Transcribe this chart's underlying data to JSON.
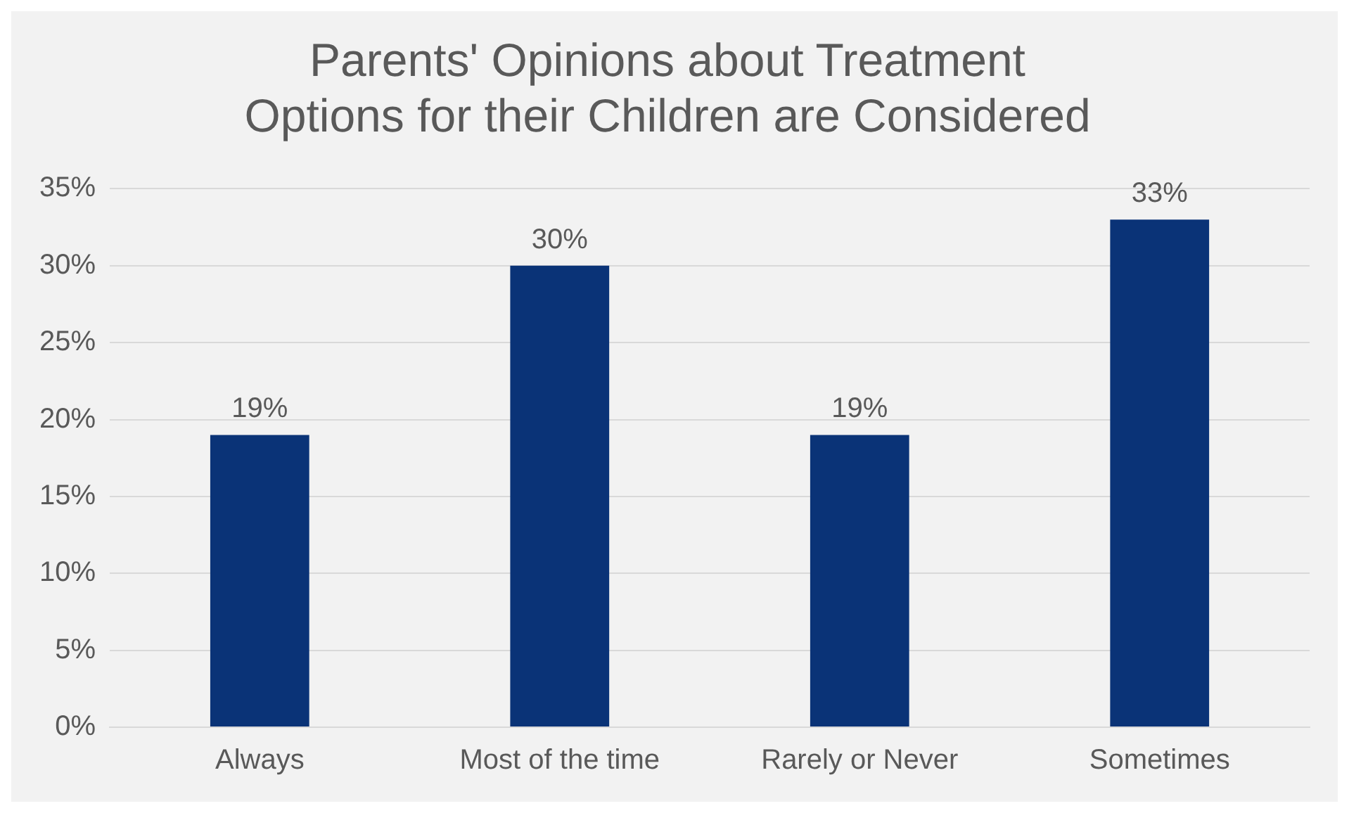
{
  "chart_data": {
    "type": "bar",
    "title": "Parents' Opinions about Treatment Options for their Children are Considered",
    "categories": [
      "Always",
      "Most of the time",
      "Rarely or Never",
      "Sometimes"
    ],
    "values": [
      19,
      30,
      19,
      33
    ],
    "value_labels": [
      "19%",
      "30%",
      "19%",
      "33%"
    ],
    "color": "#0a3377",
    "ylim": [
      0,
      35
    ],
    "yticks": [
      {
        "value": 0,
        "label": "0%"
      },
      {
        "value": 5,
        "label": "5%"
      },
      {
        "value": 10,
        "label": "10%"
      },
      {
        "value": 15,
        "label": "15%"
      },
      {
        "value": 20,
        "label": "20%"
      },
      {
        "value": 25,
        "label": "25%"
      },
      {
        "value": 30,
        "label": "30%"
      },
      {
        "value": 35,
        "label": "35%"
      }
    ],
    "grid": "y"
  }
}
